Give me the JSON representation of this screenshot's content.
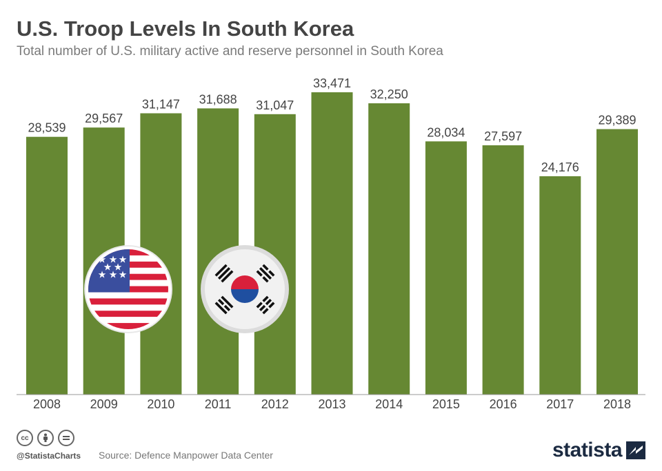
{
  "title": "U.S. Troop Levels In South Korea",
  "subtitle": "Total number of U.S. military active and reserve personnel in South Korea",
  "footer": {
    "handle": "@StatistaCharts",
    "source": "Source: Defence Manpower Data Center",
    "brand": "statista",
    "license_icons": [
      "creative-commons-icon",
      "attribution-icon",
      "no-derivatives-icon"
    ]
  },
  "flags": [
    "us-flag-icon",
    "south-korea-flag-icon"
  ],
  "colors": {
    "bar": "#668833",
    "flag_red": "#d9203b",
    "flag_blue": "#3a4e9e",
    "brand": "#1b2a41"
  },
  "chart_data": {
    "type": "bar",
    "categories": [
      "2008",
      "2009",
      "2010",
      "2011",
      "2012",
      "2013",
      "2014",
      "2015",
      "2016",
      "2017",
      "2018"
    ],
    "values": [
      28539,
      29567,
      31147,
      31688,
      31047,
      33471,
      32250,
      28034,
      27597,
      24176,
      29389
    ],
    "value_labels": [
      "28,539",
      "29,567",
      "31,147",
      "31,688",
      "31,047",
      "33,471",
      "32,250",
      "28,034",
      "27,597",
      "24,176",
      "29,389"
    ],
    "ylim": [
      0,
      33471
    ],
    "grid": false,
    "legend": "none"
  }
}
